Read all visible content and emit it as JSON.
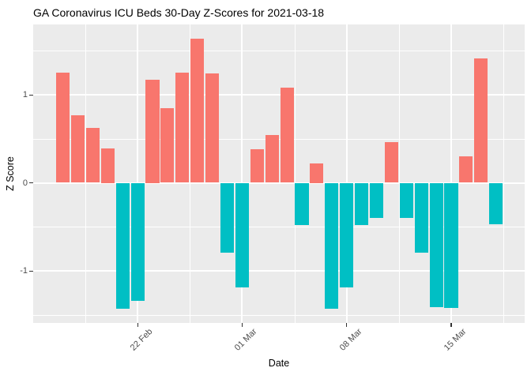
{
  "figure": {
    "title": "GA Coronavirus ICU Beds 30-Day Z-Scores for 2021-03-18"
  },
  "chart_data": {
    "type": "bar",
    "title": "GA Coronavirus ICU Beds 30-Day Z-Scores for 2021-03-18",
    "xlabel": "Date",
    "ylabel": "Z Score",
    "x": [
      "2021-02-17",
      "2021-02-18",
      "2021-02-19",
      "2021-02-20",
      "2021-02-21",
      "2021-02-22",
      "2021-02-23",
      "2021-02-24",
      "2021-02-25",
      "2021-02-26",
      "2021-02-27",
      "2021-02-28",
      "2021-03-01",
      "2021-03-02",
      "2021-03-03",
      "2021-03-04",
      "2021-03-05",
      "2021-03-06",
      "2021-03-07",
      "2021-03-08",
      "2021-03-09",
      "2021-03-10",
      "2021-03-11",
      "2021-03-12",
      "2021-03-13",
      "2021-03-14",
      "2021-03-15",
      "2021-03-16",
      "2021-03-17",
      "2021-03-18"
    ],
    "values": [
      1.25,
      0.77,
      0.62,
      0.39,
      -1.43,
      -1.34,
      1.17,
      0.85,
      1.25,
      1.64,
      1.24,
      -0.79,
      -1.19,
      0.38,
      0.54,
      1.08,
      -0.48,
      0.22,
      -1.43,
      -1.19,
      -0.48,
      -0.4,
      0.46,
      -0.4,
      -0.79,
      -1.41,
      -1.42,
      0.3,
      1.41,
      -0.47
    ],
    "x_tick_labels": [
      "22 Feb",
      "01 Mar",
      "08 Mar",
      "15 Mar"
    ],
    "x_tick_dates": [
      "2021-02-22",
      "2021-03-01",
      "2021-03-08",
      "2021-03-15"
    ],
    "y_tick_labels": [
      "1",
      "0",
      "-1"
    ],
    "y_ticks": [
      1,
      0,
      -1
    ],
    "y_minor_ticks": [
      1.5,
      0.5,
      -0.5,
      -1.5
    ],
    "ylim": [
      -1.59,
      1.8
    ],
    "grid": "white major and minor gridlines on gray panel",
    "legend": "none",
    "colors": {
      "positive_bar": "#F8766D",
      "negative_bar": "#00BFC4",
      "panel_background": "#EBEBEB",
      "gridline": "#FFFFFF",
      "tick_text": "#4D4D4D",
      "tick_mark": "#333333",
      "axis_title_text": "#000000",
      "title_text": "#000000"
    }
  }
}
